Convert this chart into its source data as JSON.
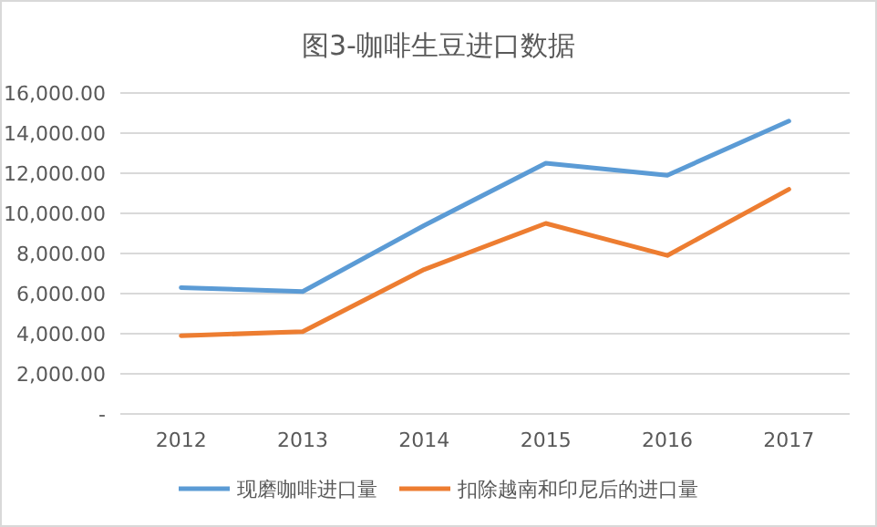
{
  "chart_data": {
    "type": "line",
    "title": "图3-咖啡生豆进口数据",
    "categories": [
      "2012",
      "2013",
      "2014",
      "2015",
      "2016",
      "2017"
    ],
    "series": [
      {
        "name": "现磨咖啡进口量",
        "color": "#5b9bd5",
        "values": [
          6300,
          6100,
          9400,
          12500,
          11900,
          14600
        ]
      },
      {
        "name": "扣除越南和印尼后的进口量",
        "color": "#ed7d31",
        "values": [
          3900,
          4100,
          7200,
          9500,
          7900,
          11200
        ]
      }
    ],
    "ylim": [
      0,
      16000
    ],
    "yticks": [
      {
        "value": 0,
        "label": "-"
      },
      {
        "value": 2000,
        "label": "2,000.00"
      },
      {
        "value": 4000,
        "label": "4,000.00"
      },
      {
        "value": 6000,
        "label": "6,000.00"
      },
      {
        "value": 8000,
        "label": "8,000.00"
      },
      {
        "value": 10000,
        "label": "10,000.00"
      },
      {
        "value": 12000,
        "label": "12,000.00"
      },
      {
        "value": 14000,
        "label": "14,000.00"
      },
      {
        "value": 16000,
        "label": "16,000.00"
      }
    ],
    "grid": "y",
    "legend": "bottom",
    "marker": "none",
    "line_style": "solid"
  }
}
